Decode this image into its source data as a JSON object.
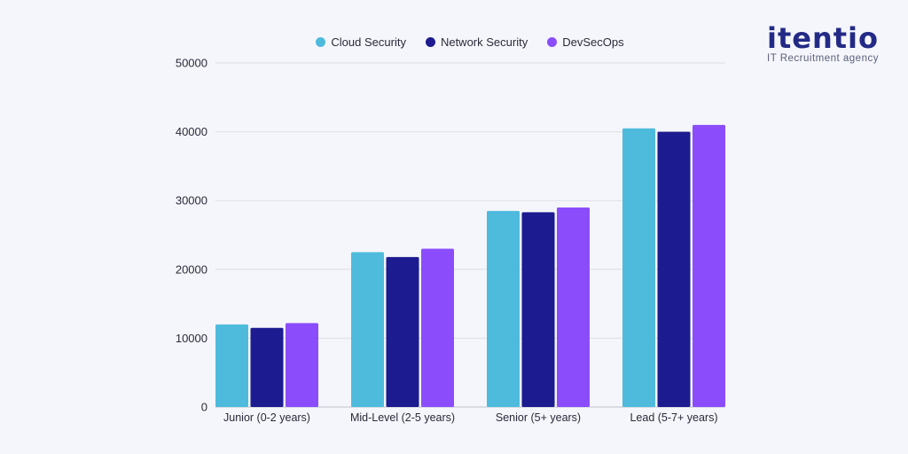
{
  "logo": {
    "name": "itentio",
    "tagline": "IT Recruitment agency"
  },
  "chart_data": {
    "type": "bar",
    "title": "",
    "xlabel": "",
    "ylabel": "",
    "ylim": [
      0,
      50000
    ],
    "yticks": [
      0,
      10000,
      20000,
      30000,
      40000,
      50000
    ],
    "grid": true,
    "legend_position": "top-center",
    "categories": [
      "Junior (0-2 years)",
      "Mid-Level (2-5 years)",
      "Senior (5+ years)",
      "Lead (5-7+ years)"
    ],
    "series": [
      {
        "name": "Cloud Security",
        "color": "#4ebbdd",
        "values": [
          12000,
          22500,
          28500,
          40500
        ]
      },
      {
        "name": "Network Security",
        "color": "#1c1b8f",
        "values": [
          11500,
          21800,
          28300,
          40000
        ]
      },
      {
        "name": "DevSecOps",
        "color": "#8b4dfb",
        "values": [
          12200,
          23000,
          29000,
          41000
        ]
      }
    ]
  }
}
